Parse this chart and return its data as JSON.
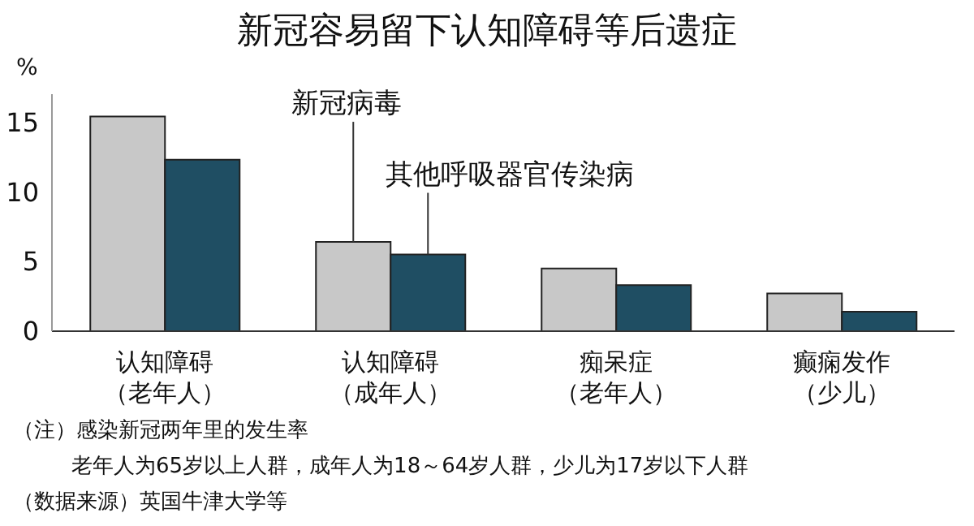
{
  "chart_data": {
    "type": "bar",
    "title": "新冠容易留下认知障碍等后遗症",
    "ylabel": "%",
    "categories": [
      "认知障碍（老年人）",
      "认知障碍（成年人）",
      "痴呆症（老年人）",
      "癫痫发作（少儿）"
    ],
    "series": [
      {
        "name": "新冠病毒",
        "color": "#c8c8c8",
        "values": [
          15.4,
          6.4,
          4.5,
          2.7
        ]
      },
      {
        "name": "其他呼吸器官传染病",
        "color": "#1f4e63",
        "values": [
          12.3,
          5.5,
          3.3,
          1.4
        ]
      }
    ],
    "ylim": [
      0,
      17
    ],
    "yticks": [
      0,
      5,
      10,
      15
    ],
    "grid": false,
    "legend": false,
    "annotations": [
      "（注）感染新冠两年里的发生率",
      "老年人为65岁以上人群，成年人为18～64岁人群，少儿为17岁以下人群",
      "（数据来源）英国牛津大学等"
    ]
  }
}
